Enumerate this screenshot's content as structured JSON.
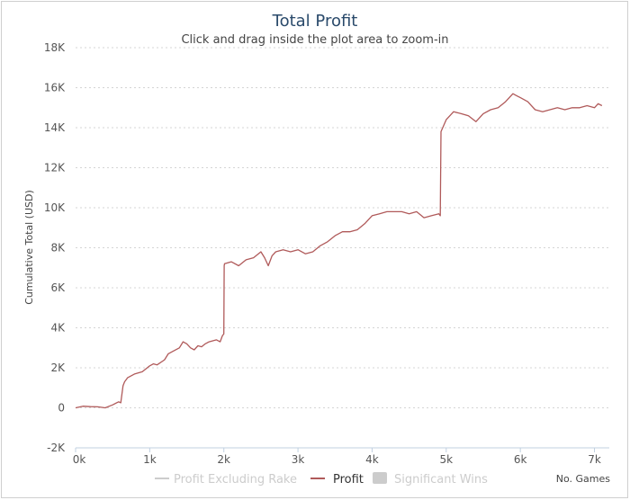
{
  "colors": {
    "profit": "#b05a5a",
    "profit_excl_rake": "#cccccc",
    "significant_wins": "#cccccc",
    "title": "#2a4a6b",
    "grid": "#d4d4d4"
  },
  "chart_data": {
    "type": "line",
    "title": "Total Profit",
    "subtitle": "Click and drag inside the plot area to zoom-in",
    "ylabel": "Cumulative Total (USD)",
    "xlabel": "No. Games",
    "xlim": [
      0,
      7200
    ],
    "ylim": [
      -2000,
      18000
    ],
    "x_ticks": [
      0,
      1000,
      2000,
      3000,
      4000,
      5000,
      6000,
      7000
    ],
    "x_tick_labels": [
      "0k",
      "1k",
      "2k",
      "3k",
      "4k",
      "5k",
      "6k",
      "7k"
    ],
    "y_ticks": [
      -2000,
      0,
      2000,
      4000,
      6000,
      8000,
      10000,
      12000,
      14000,
      16000,
      18000
    ],
    "y_tick_labels": [
      "-2K",
      "0",
      "2K",
      "4K",
      "6K",
      "8K",
      "10K",
      "12K",
      "14K",
      "16K",
      "18K"
    ],
    "grid": true,
    "legend_position": "bottom",
    "legend": [
      {
        "label": "Profit Excluding Rake",
        "visible": false,
        "marker": "line"
      },
      {
        "label": "Profit",
        "visible": true,
        "marker": "line"
      },
      {
        "label": "Significant Wins",
        "visible": false,
        "marker": "box"
      }
    ],
    "series": [
      {
        "name": "Profit",
        "x": [
          0,
          100,
          200,
          300,
          400,
          500,
          580,
          610,
          640,
          660,
          700,
          800,
          900,
          1000,
          1050,
          1100,
          1200,
          1250,
          1300,
          1400,
          1450,
          1500,
          1550,
          1600,
          1650,
          1700,
          1750,
          1800,
          1900,
          1950,
          1980,
          2000,
          2005,
          2010,
          2100,
          2200,
          2300,
          2400,
          2500,
          2550,
          2600,
          2650,
          2700,
          2800,
          2900,
          3000,
          3100,
          3200,
          3300,
          3400,
          3500,
          3600,
          3700,
          3800,
          3900,
          4000,
          4100,
          4200,
          4300,
          4400,
          4500,
          4600,
          4700,
          4800,
          4900,
          4920,
          4930,
          5000,
          5100,
          5200,
          5300,
          5400,
          5500,
          5600,
          5700,
          5800,
          5900,
          5950,
          6000,
          6100,
          6200,
          6300,
          6400,
          6500,
          6600,
          6700,
          6800,
          6900,
          7000,
          7050,
          7100
        ],
        "y": [
          0,
          80,
          60,
          50,
          0,
          150,
          300,
          250,
          1100,
          1300,
          1500,
          1700,
          1800,
          2100,
          2200,
          2150,
          2400,
          2700,
          2800,
          3000,
          3300,
          3200,
          3000,
          2900,
          3100,
          3050,
          3200,
          3300,
          3400,
          3300,
          3600,
          3700,
          7100,
          7200,
          7300,
          7100,
          7400,
          7500,
          7800,
          7500,
          7100,
          7600,
          7800,
          7900,
          7800,
          7900,
          7700,
          7800,
          8100,
          8300,
          8600,
          8800,
          8800,
          8900,
          9200,
          9600,
          9700,
          9800,
          9800,
          9800,
          9700,
          9800,
          9500,
          9600,
          9700,
          9600,
          13800,
          14400,
          14800,
          14700,
          14600,
          14300,
          14700,
          14900,
          15000,
          15300,
          15700,
          15600,
          15500,
          15300,
          14900,
          14800,
          14900,
          15000,
          14900,
          15000,
          15000,
          15100,
          15000,
          15200,
          15100
        ]
      }
    ]
  }
}
